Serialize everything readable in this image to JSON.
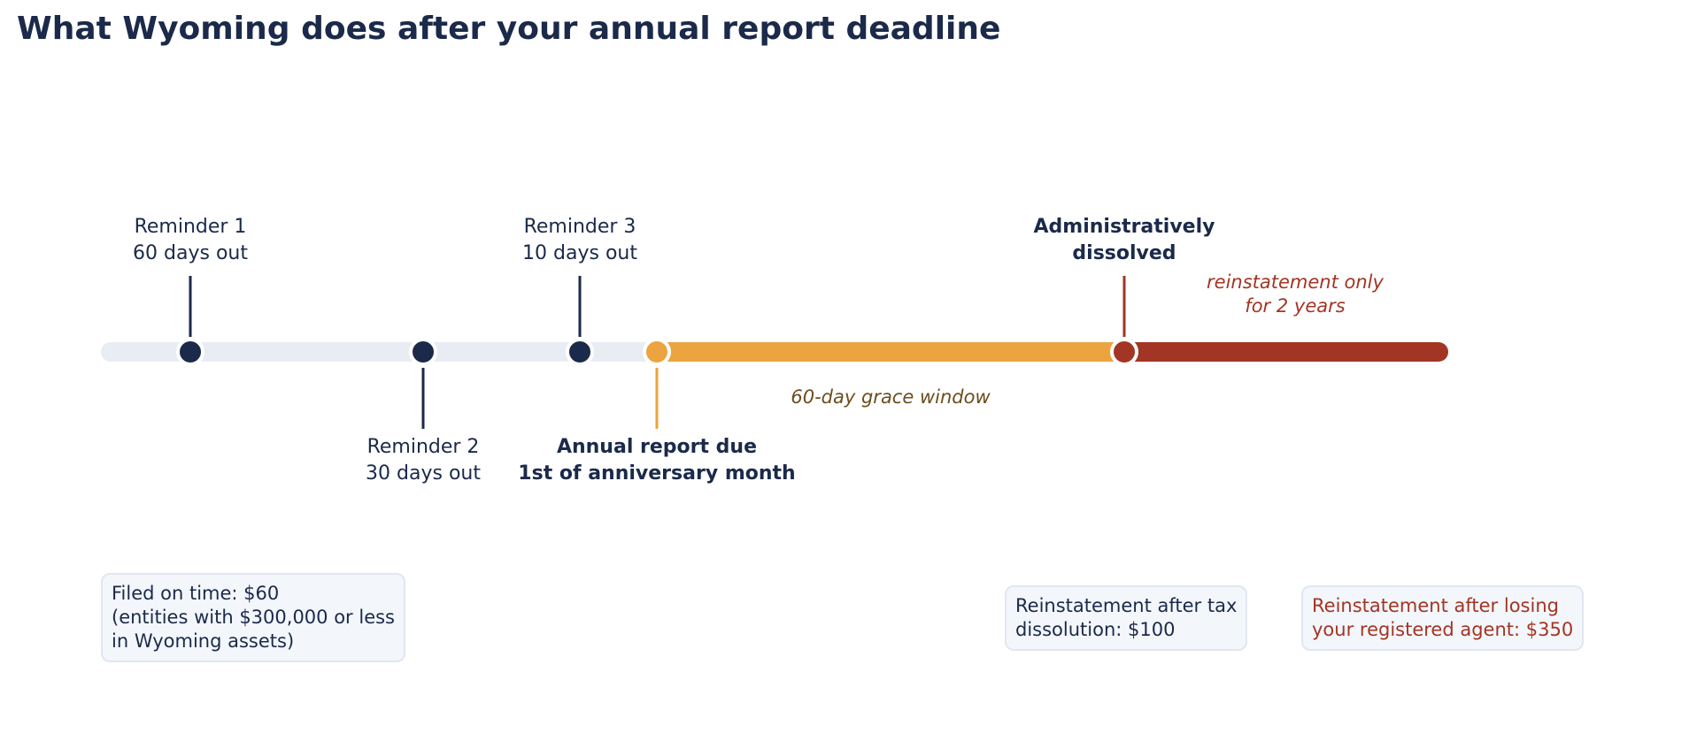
{
  "title": "What Wyoming does after your annual report deadline",
  "colors": {
    "title": "#1b2a4a",
    "track_neutral": "#e8edf4",
    "track_grace": "#eba43f",
    "track_dissolved": "#a33524",
    "dot_reminder": "#1b2a4a",
    "dot_due": "#eba43f",
    "dot_dissolved": "#a33524",
    "grace_text": "#6b4e1e",
    "box_bg": "#f3f6fb"
  },
  "milestones": [
    {
      "id": "reminder-1",
      "lines": [
        "Reminder 1",
        "60 days out"
      ],
      "bold": false,
      "color": "#1b2a4a"
    },
    {
      "id": "reminder-2",
      "lines": [
        "Reminder 2",
        "30 days out"
      ],
      "bold": false,
      "color": "#1b2a4a"
    },
    {
      "id": "reminder-3",
      "lines": [
        "Reminder 3",
        "10 days out"
      ],
      "bold": false,
      "color": "#1b2a4a"
    },
    {
      "id": "annual-report-due",
      "lines": [
        "Annual report due",
        "1st of anniversary month"
      ],
      "bold": true,
      "color": "#eba43f"
    },
    {
      "id": "administratively-dissolved",
      "lines": [
        "Administratively",
        "dissolved"
      ],
      "bold": true,
      "color": "#a33524"
    }
  ],
  "annotations": {
    "grace": "60-day grace window",
    "reinstatement_window": [
      "reinstatement only",
      "for 2 years"
    ]
  },
  "fees": [
    {
      "id": "filed-on-time",
      "lines": [
        "Filed on time: $60",
        "(entities with $300,000 or less",
        "in Wyoming assets)"
      ],
      "red": false
    },
    {
      "id": "reinstatement-tax",
      "lines": [
        "Reinstatement after tax",
        "dissolution: $100"
      ],
      "red": false
    },
    {
      "id": "reinstatement-agent",
      "lines": [
        "Reinstatement after losing",
        "your registered agent: $350"
      ],
      "red": true
    }
  ]
}
